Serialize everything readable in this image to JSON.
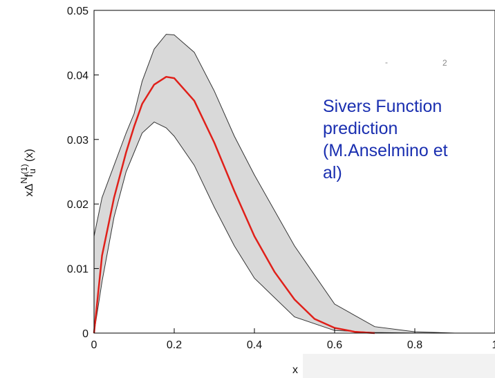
{
  "chart_data": {
    "type": "line",
    "xlabel": "x",
    "ylabel_main": "xΔ",
    "ylabel_sup": "N",
    "ylabel_f": "f",
    "ylabel_fsup": "(1)",
    "ylabel_sub": "u",
    "ylabel_tail": "(x)",
    "xlim": [
      0,
      1
    ],
    "ylim": [
      0,
      0.05
    ],
    "x_ticks": [
      "0",
      "0.2",
      "0.4",
      "0.6",
      "0.8",
      "1"
    ],
    "y_ticks": [
      "0",
      "0.01",
      "0.02",
      "0.03",
      "0.04",
      "0.05"
    ],
    "grid": false,
    "legend": "none",
    "series": [
      {
        "kind": "band",
        "color": "#d9d9d9",
        "x": [
          0,
          0.02,
          0.05,
          0.08,
          0.1,
          0.12,
          0.15,
          0.18,
          0.2,
          0.25,
          0.3,
          0.35,
          0.4,
          0.5,
          0.6,
          0.7,
          0.8,
          0.9
        ],
        "upper": [
          0.015,
          0.021,
          0.026,
          0.031,
          0.034,
          0.039,
          0.044,
          0.0463,
          0.0462,
          0.0435,
          0.0375,
          0.0305,
          0.0245,
          0.0135,
          0.0045,
          0.001,
          0.0002,
          0
        ],
        "lower": [
          0,
          0.008,
          0.018,
          0.025,
          0.028,
          0.031,
          0.0327,
          0.0318,
          0.0305,
          0.026,
          0.0195,
          0.0135,
          0.0085,
          0.0025,
          0.0004,
          0.0001,
          0,
          0
        ]
      },
      {
        "kind": "line",
        "color": "#e0201a",
        "x": [
          0,
          0.02,
          0.05,
          0.08,
          0.1,
          0.12,
          0.15,
          0.18,
          0.2,
          0.25,
          0.3,
          0.35,
          0.4,
          0.45,
          0.5,
          0.55,
          0.6,
          0.65,
          0.7
        ],
        "y": [
          0,
          0.012,
          0.021,
          0.028,
          0.032,
          0.0355,
          0.0385,
          0.0397,
          0.0395,
          0.036,
          0.0295,
          0.022,
          0.015,
          0.0095,
          0.0052,
          0.0022,
          0.0008,
          0.0002,
          0
        ]
      }
    ]
  },
  "annotation": {
    "lines": [
      "Sivers Function",
      "prediction",
      "(M.Anselmino et",
      "al)"
    ]
  },
  "stray_marks": {
    "a": "-",
    "b": "2"
  }
}
